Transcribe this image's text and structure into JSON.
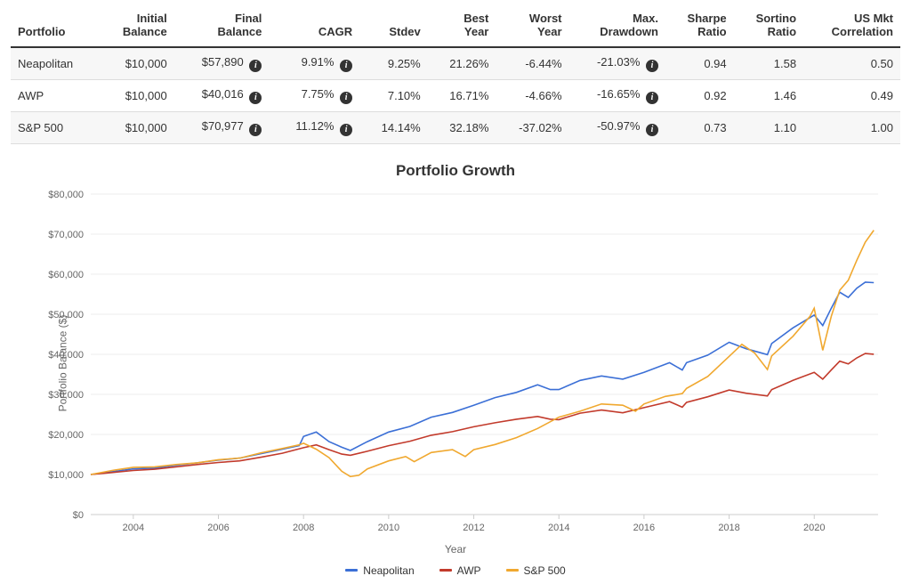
{
  "table": {
    "columns": [
      "Portfolio",
      "Initial Balance",
      "Final Balance",
      "CAGR",
      "Stdev",
      "Best Year",
      "Worst Year",
      "Max. Drawdown",
      "Sharpe Ratio",
      "Sortino Ratio",
      "US Mkt Correlation"
    ],
    "info_cols": [
      2,
      3,
      7
    ],
    "rows": [
      {
        "name": "Neapolitan",
        "initial": "$10,000",
        "final": "$57,890",
        "cagr": "9.91%",
        "stdev": "9.25%",
        "best": "21.26%",
        "worst": "-6.44%",
        "dd": "-21.03%",
        "sharpe": "0.94",
        "sortino": "1.58",
        "corr": "0.50"
      },
      {
        "name": "AWP",
        "initial": "$10,000",
        "final": "$40,016",
        "cagr": "7.75%",
        "stdev": "7.10%",
        "best": "16.71%",
        "worst": "-4.66%",
        "dd": "-16.65%",
        "sharpe": "0.92",
        "sortino": "1.46",
        "corr": "0.49"
      },
      {
        "name": "S&P 500",
        "initial": "$10,000",
        "final": "$70,977",
        "cagr": "11.12%",
        "stdev": "14.14%",
        "best": "32.18%",
        "worst": "-37.02%",
        "dd": "-50.97%",
        "sharpe": "0.73",
        "sortino": "1.10",
        "corr": "1.00"
      }
    ]
  },
  "chart": {
    "title": "Portfolio Growth",
    "ylabel": "Portfolio Balance ($)",
    "xlabel": "Year",
    "x_start": 2003,
    "x_end": 2021.5,
    "xticks": [
      2004,
      2006,
      2008,
      2010,
      2012,
      2014,
      2016,
      2018,
      2020
    ],
    "y_min": 0,
    "y_max": 80000,
    "yticks": [
      0,
      10000,
      20000,
      30000,
      40000,
      50000,
      60000,
      70000,
      80000
    ],
    "ytick_labels": [
      "$0",
      "$10,000",
      "$20,000",
      "$30,000",
      "$40,000",
      "$50,000",
      "$60,000",
      "$70,000",
      "$80,000"
    ],
    "grid_color": "#eeeeee",
    "axis_color": "#cccccc",
    "background": "#ffffff",
    "series": [
      {
        "name": "Neapolitan",
        "color": "#3b6fd6",
        "points": [
          [
            2003.0,
            10000
          ],
          [
            2003.5,
            10700
          ],
          [
            2004.0,
            11400
          ],
          [
            2004.5,
            11600
          ],
          [
            2005.0,
            12300
          ],
          [
            2005.5,
            12900
          ],
          [
            2006.0,
            13600
          ],
          [
            2006.5,
            14100
          ],
          [
            2007.0,
            15200
          ],
          [
            2007.5,
            16300
          ],
          [
            2007.9,
            17200
          ],
          [
            2008.0,
            19500
          ],
          [
            2008.3,
            20600
          ],
          [
            2008.6,
            18200
          ],
          [
            2008.9,
            16800
          ],
          [
            2009.1,
            16000
          ],
          [
            2009.5,
            18200
          ],
          [
            2010.0,
            20600
          ],
          [
            2010.5,
            22000
          ],
          [
            2011.0,
            24300
          ],
          [
            2011.5,
            25500
          ],
          [
            2012.0,
            27300
          ],
          [
            2012.5,
            29200
          ],
          [
            2013.0,
            30500
          ],
          [
            2013.5,
            32400
          ],
          [
            2013.8,
            31200
          ],
          [
            2014.0,
            31200
          ],
          [
            2014.5,
            33500
          ],
          [
            2015.0,
            34600
          ],
          [
            2015.5,
            33800
          ],
          [
            2016.0,
            35500
          ],
          [
            2016.6,
            37900
          ],
          [
            2016.9,
            36100
          ],
          [
            2017.0,
            37900
          ],
          [
            2017.5,
            39800
          ],
          [
            2018.0,
            43000
          ],
          [
            2018.4,
            41400
          ],
          [
            2018.9,
            39900
          ],
          [
            2019.0,
            42700
          ],
          [
            2019.5,
            46600
          ],
          [
            2020.0,
            49800
          ],
          [
            2020.2,
            47200
          ],
          [
            2020.4,
            51500
          ],
          [
            2020.6,
            55500
          ],
          [
            2020.8,
            54200
          ],
          [
            2021.0,
            56500
          ],
          [
            2021.2,
            58000
          ],
          [
            2021.4,
            57890
          ]
        ]
      },
      {
        "name": "AWP",
        "color": "#c23a2b",
        "points": [
          [
            2003.0,
            10000
          ],
          [
            2003.5,
            10500
          ],
          [
            2004.0,
            11000
          ],
          [
            2004.5,
            11300
          ],
          [
            2005.0,
            11900
          ],
          [
            2005.5,
            12500
          ],
          [
            2006.0,
            13000
          ],
          [
            2006.5,
            13400
          ],
          [
            2007.0,
            14300
          ],
          [
            2007.5,
            15300
          ],
          [
            2008.0,
            16700
          ],
          [
            2008.3,
            17400
          ],
          [
            2008.6,
            16200
          ],
          [
            2008.9,
            15100
          ],
          [
            2009.1,
            14800
          ],
          [
            2009.5,
            15800
          ],
          [
            2010.0,
            17200
          ],
          [
            2010.5,
            18300
          ],
          [
            2011.0,
            19800
          ],
          [
            2011.5,
            20700
          ],
          [
            2012.0,
            21900
          ],
          [
            2012.5,
            22900
          ],
          [
            2013.0,
            23800
          ],
          [
            2013.5,
            24500
          ],
          [
            2013.8,
            23800
          ],
          [
            2014.0,
            23700
          ],
          [
            2014.5,
            25300
          ],
          [
            2015.0,
            26100
          ],
          [
            2015.5,
            25400
          ],
          [
            2016.0,
            26700
          ],
          [
            2016.6,
            28200
          ],
          [
            2016.9,
            26800
          ],
          [
            2017.0,
            28000
          ],
          [
            2017.5,
            29400
          ],
          [
            2018.0,
            31100
          ],
          [
            2018.4,
            30300
          ],
          [
            2018.9,
            29600
          ],
          [
            2019.0,
            31200
          ],
          [
            2019.5,
            33500
          ],
          [
            2020.0,
            35500
          ],
          [
            2020.2,
            33800
          ],
          [
            2020.4,
            36100
          ],
          [
            2020.6,
            38300
          ],
          [
            2020.8,
            37600
          ],
          [
            2021.0,
            39100
          ],
          [
            2021.2,
            40200
          ],
          [
            2021.4,
            40016
          ]
        ]
      },
      {
        "name": "S&P 500",
        "color": "#f0a82f",
        "points": [
          [
            2003.0,
            10000
          ],
          [
            2003.5,
            11000
          ],
          [
            2004.0,
            11800
          ],
          [
            2004.5,
            11900
          ],
          [
            2005.0,
            12500
          ],
          [
            2005.5,
            12900
          ],
          [
            2006.0,
            13700
          ],
          [
            2006.5,
            14100
          ],
          [
            2007.0,
            15400
          ],
          [
            2007.5,
            16500
          ],
          [
            2007.9,
            17400
          ],
          [
            2008.0,
            17800
          ],
          [
            2008.3,
            16300
          ],
          [
            2008.6,
            14200
          ],
          [
            2008.9,
            10800
          ],
          [
            2009.1,
            9500
          ],
          [
            2009.3,
            9800
          ],
          [
            2009.5,
            11400
          ],
          [
            2010.0,
            13400
          ],
          [
            2010.4,
            14500
          ],
          [
            2010.6,
            13200
          ],
          [
            2011.0,
            15500
          ],
          [
            2011.5,
            16200
          ],
          [
            2011.8,
            14500
          ],
          [
            2012.0,
            16200
          ],
          [
            2012.5,
            17500
          ],
          [
            2013.0,
            19200
          ],
          [
            2013.5,
            21500
          ],
          [
            2014.0,
            24300
          ],
          [
            2014.5,
            25800
          ],
          [
            2015.0,
            27600
          ],
          [
            2015.5,
            27300
          ],
          [
            2015.8,
            25800
          ],
          [
            2016.0,
            27600
          ],
          [
            2016.5,
            29500
          ],
          [
            2016.9,
            30200
          ],
          [
            2017.0,
            31500
          ],
          [
            2017.5,
            34500
          ],
          [
            2018.0,
            39500
          ],
          [
            2018.3,
            42500
          ],
          [
            2018.6,
            40300
          ],
          [
            2018.9,
            36200
          ],
          [
            2019.0,
            39600
          ],
          [
            2019.5,
            44500
          ],
          [
            2019.9,
            49500
          ],
          [
            2020.0,
            51500
          ],
          [
            2020.2,
            41000
          ],
          [
            2020.4,
            49500
          ],
          [
            2020.6,
            56000
          ],
          [
            2020.8,
            58500
          ],
          [
            2021.0,
            63500
          ],
          [
            2021.2,
            68000
          ],
          [
            2021.4,
            70977
          ]
        ]
      }
    ]
  }
}
